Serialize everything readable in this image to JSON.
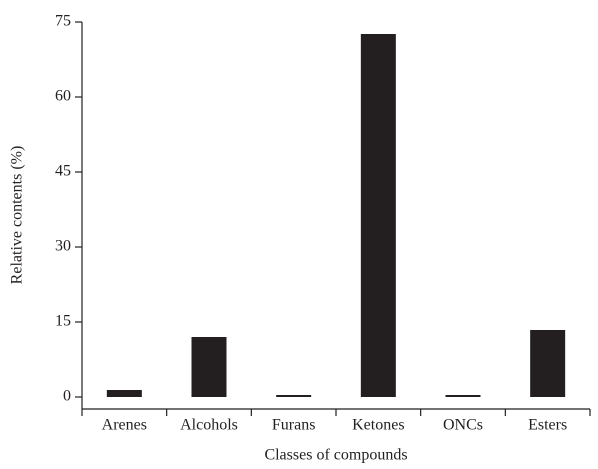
{
  "chart_data": {
    "type": "bar",
    "xlabel": "Classes of compounds",
    "ylabel": "Relative contents (%)",
    "categories": [
      "Arenes",
      "Alcohols",
      "Furans",
      "Ketones",
      "ONCs",
      "Esters"
    ],
    "values": [
      1.4,
      12,
      0.4,
      72.6,
      0.4,
      13.4
    ],
    "color": "#231f20",
    "ylim": [
      0,
      75
    ],
    "yticks": [
      0,
      15,
      30,
      45,
      60,
      75
    ]
  }
}
